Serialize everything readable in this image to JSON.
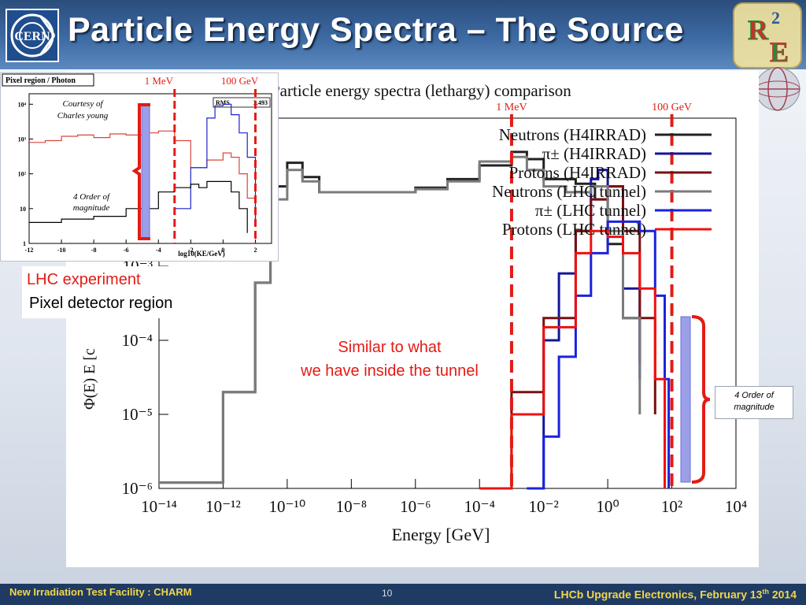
{
  "slide": {
    "title": "Particle Energy Spectra – The Source",
    "footer_left": "New Irradiation Test Facility : CHARM",
    "page_number": "10",
    "footer_right_main": "LHCb Upgrade Electronics, February 13",
    "footer_right_sup": "th",
    "footer_right_year": " 2014",
    "logos": [
      "cern-logo",
      "r2e-logo"
    ],
    "callout_lhc_experiment": "LHC experiment",
    "callout_pixel_detector": "Pixel detector region",
    "callout_similar_line1": "Similar to what",
    "callout_similar_line2": "we have inside the tunnel",
    "callout_order_line1": "4 Order of",
    "callout_order_line2": "magnitude",
    "colors": {
      "header": "#3d6aa3",
      "footer": "#1f3b63",
      "accent_red": "#e31b14",
      "footer_text": "#f2d64b"
    }
  },
  "chart_data": [
    {
      "type": "line",
      "title": "Particle energy spectra (lethargy) comparison",
      "xlabel": "Energy [GeV]",
      "ylabel": "Φ(E) E  [c",
      "xscale": "log",
      "yscale": "log",
      "xlim": [
        1e-14,
        10000.0
      ],
      "ylim": [
        1e-06,
        0.1
      ],
      "x_ticks": [
        "10⁻¹⁴",
        "10⁻¹²",
        "10⁻¹⁰",
        "10⁻⁸",
        "10⁻⁶",
        "10⁻⁴",
        "10⁻²",
        "10⁰",
        "10²",
        "10⁴"
      ],
      "y_ticks": [
        "10⁻³",
        "10⁻⁴",
        "10⁻⁵",
        "10⁻⁶"
      ],
      "legend_position": "top-right",
      "threshold_labels": [
        "1 MeV",
        "100 GeV"
      ],
      "thresholds_gev": [
        0.001,
        100
      ],
      "series": [
        {
          "name": "Neutrons (H4IRRAD)",
          "color": "#222222",
          "points": [
            [
              1e-14,
              1.2e-06
            ],
            [
              1e-13,
              1.2e-06
            ],
            [
              3e-13,
              1.2e-06
            ],
            [
              1e-12,
              2e-05
            ],
            [
              1e-11,
              0.0006
            ],
            [
              3e-11,
              0.012
            ],
            [
              1e-10,
              0.025
            ],
            [
              3e-10,
              0.016
            ],
            [
              1e-09,
              0.01
            ],
            [
              1e-08,
              0.01
            ],
            [
              1e-06,
              0.0115
            ],
            [
              1e-05,
              0.015
            ],
            [
              0.0001,
              0.023
            ],
            [
              0.001,
              0.035
            ],
            [
              0.003,
              0.028
            ],
            [
              0.01,
              0.015
            ],
            [
              0.1,
              0.013
            ],
            [
              0.4,
              0.008
            ],
            [
              1,
              0.002
            ],
            [
              3,
              0.0002
            ],
            [
              10,
              5e-05
            ]
          ]
        },
        {
          "name": "π± (H4IRRAD)",
          "color": "#14169a",
          "points": [
            [
              0.003,
              1e-06
            ],
            [
              0.01,
              0.0001
            ],
            [
              0.03,
              0.0008
            ],
            [
              0.1,
              0.003
            ],
            [
              0.3,
              0.015
            ],
            [
              0.5,
              0.02
            ],
            [
              1,
              0.012
            ],
            [
              3,
              0.0005
            ],
            [
              10,
              3e-05
            ]
          ]
        },
        {
          "name": "Protons (H4IRRAD)",
          "color": "#7a1010",
          "points": [
            [
              0.0001,
              1e-06
            ],
            [
              0.001,
              2e-05
            ],
            [
              0.01,
              0.0002
            ],
            [
              0.1,
              0.003
            ],
            [
              0.3,
              0.008
            ],
            [
              1,
              0.012
            ],
            [
              3,
              0.003
            ],
            [
              10,
              0.0002
            ],
            [
              30,
              1e-05
            ]
          ]
        },
        {
          "name": "Neutrons (LHC tunnel)",
          "color": "#7b7b7b",
          "points": [
            [
              1e-14,
              1.2e-06
            ],
            [
              1e-13,
              1.2e-06
            ],
            [
              3e-13,
              1.2e-06
            ],
            [
              1e-12,
              2e-05
            ],
            [
              1e-11,
              0.0006
            ],
            [
              3e-11,
              0.008
            ],
            [
              1e-10,
              0.02
            ],
            [
              3e-10,
              0.014
            ],
            [
              1e-09,
              0.01
            ],
            [
              1e-08,
              0.01
            ],
            [
              1e-06,
              0.011
            ],
            [
              1e-05,
              0.014
            ],
            [
              0.0001,
              0.026
            ],
            [
              0.001,
              0.03
            ],
            [
              0.003,
              0.02
            ],
            [
              0.01,
              0.012
            ],
            [
              0.05,
              0.01
            ],
            [
              0.3,
              0.012
            ],
            [
              1,
              0.003
            ],
            [
              3,
              0.0002
            ],
            [
              10,
              1e-05
            ]
          ]
        },
        {
          "name": "π± (LHC tunnel)",
          "color": "#1a22e0",
          "points": [
            [
              0.003,
              1e-06
            ],
            [
              0.01,
              5e-06
            ],
            [
              0.03,
              6e-05
            ],
            [
              0.1,
              0.0004
            ],
            [
              0.3,
              0.0015
            ],
            [
              1,
              0.004
            ],
            [
              3,
              0.004
            ],
            [
              10,
              0.003
            ],
            [
              30,
              0.0004
            ],
            [
              60,
              3e-05
            ],
            [
              80,
              1e-06
            ]
          ]
        },
        {
          "name": "Protons (LHC tunnel)",
          "color": "#f01010",
          "points": [
            [
              0.0001,
              1e-06
            ],
            [
              0.001,
              1e-05
            ],
            [
              0.01,
              0.00015
            ],
            [
              0.1,
              0.0015
            ],
            [
              0.3,
              0.003
            ],
            [
              1,
              0.0025
            ],
            [
              3,
              0.0015
            ],
            [
              10,
              0.0005
            ],
            [
              30,
              3e-05
            ],
            [
              60,
              1e-06
            ]
          ]
        }
      ]
    },
    {
      "type": "line",
      "title": "Pixel region / Photon",
      "xlabel": "log10(KE/GeV)",
      "xscale": "linear",
      "yscale": "log",
      "xlim": [
        -12,
        3
      ],
      "ylim": [
        1,
        20000
      ],
      "x_ticks": [
        "-12",
        "-10",
        "-8",
        "-6",
        "-4",
        "-2",
        "0",
        "2"
      ],
      "y_ticks": [
        "10⁴",
        "10³",
        "10²",
        "10",
        "1"
      ],
      "annotation_courtesy": [
        "Courtesy of",
        "Charles young"
      ],
      "annotation_order": [
        "4 Order of",
        "magnitude"
      ],
      "stats_label": "RMS",
      "stats_value": "2.493",
      "threshold_labels": [
        "1 MeV",
        "100 GeV"
      ],
      "thresholds_log10": [
        -3,
        2
      ],
      "series": [
        {
          "color": "#d9463b",
          "points": [
            [
              -12,
              800
            ],
            [
              -11,
              900
            ],
            [
              -10,
              1200
            ],
            [
              -9,
              1300
            ],
            [
              -8,
              1100
            ],
            [
              -7,
              1400
            ],
            [
              -6,
              1300
            ],
            [
              -5,
              1500
            ],
            [
              -4,
              1700
            ],
            [
              -3,
              900
            ],
            [
              -2,
              150
            ],
            [
              -1,
              250
            ],
            [
              0,
              400
            ],
            [
              0.5,
              300
            ],
            [
              1,
              100
            ],
            [
              1.5,
              20
            ],
            [
              2,
              3
            ]
          ]
        },
        {
          "color": "#1c22c8",
          "points": [
            [
              -3,
              10
            ],
            [
              -2,
              150
            ],
            [
              -1,
              4000
            ],
            [
              -0.5,
              9000
            ],
            [
              0,
              10000
            ],
            [
              0.5,
              5000
            ],
            [
              1,
              1500
            ],
            [
              1.5,
              300
            ],
            [
              2,
              5
            ]
          ]
        },
        {
          "color": "#000000",
          "points": [
            [
              -12,
              4
            ],
            [
              -10,
              5
            ],
            [
              -8,
              6
            ],
            [
              -6,
              10
            ],
            [
              -4,
              30
            ],
            [
              -3,
              40
            ],
            [
              -2,
              50
            ],
            [
              -1.5,
              40
            ],
            [
              -1,
              60
            ],
            [
              0,
              60
            ],
            [
              0.5,
              30
            ],
            [
              1,
              10
            ],
            [
              1.5,
              2
            ]
          ]
        }
      ]
    }
  ]
}
